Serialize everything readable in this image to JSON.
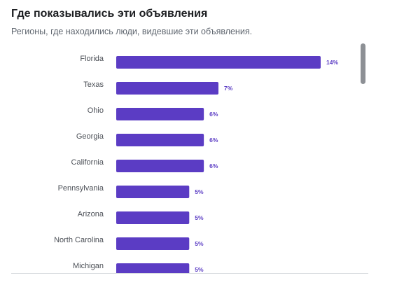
{
  "header": {
    "title": "Где показывались эти объявления",
    "subtitle": "Регионы, где находились люди, видевшие эти объявления."
  },
  "colors": {
    "bar": "#5b3cc4",
    "value_label": "#5b3cc4"
  },
  "scrollbar": {
    "visible_fraction": 0.2,
    "scroll_position": 0
  },
  "chart_data": {
    "type": "bar",
    "orientation": "horizontal",
    "title": "Где показывались эти объявления",
    "subtitle": "Регионы, где находились люди, видевшие эти объявления.",
    "categories": [
      "Florida",
      "Texas",
      "Ohio",
      "Georgia",
      "California",
      "Pennsylvania",
      "Arizona",
      "North Carolina",
      "Michigan"
    ],
    "values": [
      14,
      7,
      6,
      6,
      6,
      5,
      5,
      5,
      5
    ],
    "value_labels": [
      "14%",
      "7%",
      "6%",
      "6%",
      "6%",
      "5%",
      "5%",
      "5%",
      "5%"
    ],
    "unit": "%",
    "xlim": [
      0,
      14
    ],
    "grid": false,
    "legend": "none"
  }
}
